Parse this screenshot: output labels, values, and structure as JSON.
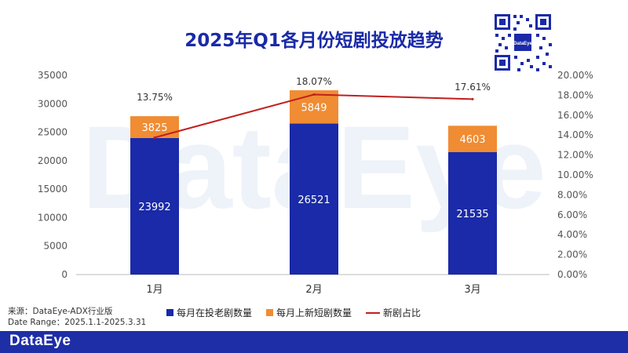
{
  "page": {
    "title": "2025年Q1各月份短剧投放趋势",
    "watermark": "DataEye",
    "source_line1": "来源：DataEye-ADX行业版",
    "source_line2": "Date Range：2025.1.1-2025.3.31",
    "footer_logo": "DataEye"
  },
  "colors": {
    "old": "#1a2aa8",
    "new": "#f08c33",
    "ratio": "#c0201e",
    "footer": "#1e2ea6"
  },
  "chart_data": {
    "type": "bar",
    "stacked": true,
    "categories": [
      "1月",
      "2月",
      "3月"
    ],
    "series": [
      {
        "name": "每月在投老剧数量",
        "values": [
          23992,
          26521,
          21535
        ],
        "axis": "left"
      },
      {
        "name": "每月上新短剧数量",
        "values": [
          3825,
          5849,
          4603
        ],
        "axis": "left"
      },
      {
        "name": "新剧占比",
        "type": "line",
        "values": [
          13.75,
          18.07,
          17.61
        ],
        "axis": "right",
        "labels": [
          "13.75%",
          "18.07%",
          "17.61%"
        ]
      }
    ],
    "y_left": {
      "min": 0,
      "max": 35000,
      "ticks": [
        "0",
        "5000",
        "10000",
        "15000",
        "20000",
        "25000",
        "30000",
        "35000"
      ]
    },
    "y_right": {
      "min": 0,
      "max": 20,
      "ticks": [
        "0.00%",
        "2.00%",
        "4.00%",
        "6.00%",
        "8.00%",
        "10.00%",
        "12.00%",
        "14.00%",
        "16.00%",
        "18.00%",
        "20.00%"
      ]
    },
    "grid": false,
    "legend": "bottom"
  }
}
